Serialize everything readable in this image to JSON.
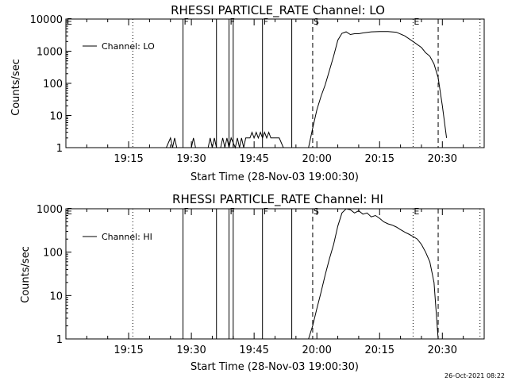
{
  "footer": {
    "timestamp": "26-Oct-2021 08:22"
  },
  "chart_data": [
    {
      "type": "line",
      "title": "RHESSI PARTICLE_RATE Channel: LO",
      "xlabel": "Start Time (28-Nov-03 19:00:30)",
      "ylabel": "Counts/sec",
      "yscale": "log",
      "xlim": [
        "19:00",
        "20:40"
      ],
      "ylim": [
        1,
        10000
      ],
      "x_ticks": [
        "19:15",
        "19:30",
        "19:45",
        "20:00",
        "20:15",
        "20:30"
      ],
      "y_ticks": [
        "1",
        "10",
        "100",
        "1000",
        "10000"
      ],
      "legend": {
        "placement": "top-left",
        "entries": [
          "Channel: LO"
        ]
      },
      "markers": [
        {
          "label": "E",
          "time": "19:00",
          "style": "none"
        },
        {
          "label": "",
          "time": "19:16",
          "style": "dotted"
        },
        {
          "label": "F",
          "time": "19:28",
          "style": "solid"
        },
        {
          "label": "",
          "time": "19:36",
          "style": "solid"
        },
        {
          "label": "F",
          "time": "19:39",
          "style": "solid"
        },
        {
          "label": "",
          "time": "19:40",
          "style": "solid"
        },
        {
          "label": "F",
          "time": "19:47",
          "style": "solid"
        },
        {
          "label": "",
          "time": "19:54",
          "style": "solid"
        },
        {
          "label": "S",
          "time": "19:59",
          "style": "dashed"
        },
        {
          "label": "E",
          "time": "20:23",
          "style": "dotted"
        },
        {
          "label": "",
          "time": "20:29",
          "style": "dashed"
        },
        {
          "label": "",
          "time": "20:39",
          "style": "dotted"
        }
      ],
      "series": [
        {
          "name": "Channel: LO",
          "points": [
            [
              "19:24",
              1
            ],
            [
              "19:25",
              2
            ],
            [
              "19:25.5",
              1
            ],
            [
              "19:26",
              2
            ],
            [
              "19:26.5",
              1
            ],
            [
              "19:30",
              1
            ],
            [
              "19:30.5",
              2
            ],
            [
              "19:31",
              1
            ],
            [
              "19:34",
              1
            ],
            [
              "19:34.5",
              2
            ],
            [
              "19:35",
              1
            ],
            [
              "19:35.5",
              2
            ],
            [
              "19:36",
              1
            ],
            [
              "19:37",
              1
            ],
            [
              "19:37.5",
              2
            ],
            [
              "19:38",
              1
            ],
            [
              "19:38.5",
              2
            ],
            [
              "19:39",
              1
            ],
            [
              "19:39.5",
              2
            ],
            [
              "19:40.5",
              1
            ],
            [
              "19:41",
              2
            ],
            [
              "19:41.5",
              1
            ],
            [
              "19:42",
              2
            ],
            [
              "19:42.5",
              1
            ],
            [
              "19:43",
              2
            ],
            [
              "19:44",
              2
            ],
            [
              "19:44.5",
              3
            ],
            [
              "19:45",
              2
            ],
            [
              "19:45.5",
              3
            ],
            [
              "19:46",
              2
            ],
            [
              "19:46.5",
              3
            ],
            [
              "19:47",
              2
            ],
            [
              "19:47.5",
              3
            ],
            [
              "19:48",
              2
            ],
            [
              "19:48.5",
              3
            ],
            [
              "19:49",
              2
            ],
            [
              "19:49.5",
              2
            ],
            [
              "19:50",
              2
            ],
            [
              "19:51",
              2
            ],
            [
              "19:52",
              1
            ],
            [
              "19:58",
              1
            ],
            [
              "19:59",
              4
            ],
            [
              "20:00",
              15
            ],
            [
              "20:01",
              40
            ],
            [
              "20:02",
              90
            ],
            [
              "20:03",
              250
            ],
            [
              "20:04",
              700
            ],
            [
              "20:05",
              2200
            ],
            [
              "20:06",
              3600
            ],
            [
              "20:07",
              4000
            ],
            [
              "20:08",
              3300
            ],
            [
              "20:09",
              3500
            ],
            [
              "20:10",
              3500
            ],
            [
              "20:11",
              3700
            ],
            [
              "20:13",
              4000
            ],
            [
              "20:15",
              4100
            ],
            [
              "20:17",
              4100
            ],
            [
              "20:19",
              3900
            ],
            [
              "20:21",
              3000
            ],
            [
              "20:23",
              2000
            ],
            [
              "20:25",
              1300
            ],
            [
              "20:26",
              900
            ],
            [
              "20:27",
              700
            ],
            [
              "20:28",
              400
            ],
            [
              "20:29",
              150
            ],
            [
              "20:30",
              20
            ],
            [
              "20:31",
              2
            ]
          ]
        }
      ]
    },
    {
      "type": "line",
      "title": "RHESSI PARTICLE_RATE Channel: HI",
      "xlabel": "Start Time (28-Nov-03 19:00:30)",
      "ylabel": "Counts/sec",
      "yscale": "log",
      "xlim": [
        "19:00",
        "20:40"
      ],
      "ylim": [
        1,
        1000
      ],
      "x_ticks": [
        "19:15",
        "19:30",
        "19:45",
        "20:00",
        "20:15",
        "20:30"
      ],
      "y_ticks": [
        "1",
        "10",
        "100",
        "1000"
      ],
      "legend": {
        "placement": "top-left",
        "entries": [
          "Channel: HI"
        ]
      },
      "markers": [
        {
          "label": "E",
          "time": "19:00",
          "style": "none"
        },
        {
          "label": "",
          "time": "19:16",
          "style": "dotted"
        },
        {
          "label": "F",
          "time": "19:28",
          "style": "solid"
        },
        {
          "label": "",
          "time": "19:36",
          "style": "solid"
        },
        {
          "label": "F",
          "time": "19:39",
          "style": "solid"
        },
        {
          "label": "",
          "time": "19:40",
          "style": "solid"
        },
        {
          "label": "F",
          "time": "19:47",
          "style": "solid"
        },
        {
          "label": "",
          "time": "19:54",
          "style": "solid"
        },
        {
          "label": "S",
          "time": "19:59",
          "style": "dashed"
        },
        {
          "label": "E",
          "time": "20:23",
          "style": "dotted"
        },
        {
          "label": "",
          "time": "20:29",
          "style": "dashed"
        },
        {
          "label": "",
          "time": "20:39",
          "style": "dotted"
        }
      ],
      "series": [
        {
          "name": "Channel: HI",
          "points": [
            [
              "19:58",
              1
            ],
            [
              "19:59",
              2
            ],
            [
              "20:00",
              5
            ],
            [
              "20:01",
              12
            ],
            [
              "20:02",
              30
            ],
            [
              "20:03",
              70
            ],
            [
              "20:04",
              150
            ],
            [
              "20:05",
              400
            ],
            [
              "20:06",
              800
            ],
            [
              "20:07",
              1000
            ],
            [
              "20:08",
              950
            ],
            [
              "20:09",
              800
            ],
            [
              "20:10",
              900
            ],
            [
              "20:11",
              750
            ],
            [
              "20:12",
              800
            ],
            [
              "20:13",
              650
            ],
            [
              "20:14",
              700
            ],
            [
              "20:15",
              600
            ],
            [
              "20:16",
              500
            ],
            [
              "20:17",
              450
            ],
            [
              "20:18",
              420
            ],
            [
              "20:19",
              380
            ],
            [
              "20:20",
              330
            ],
            [
              "20:21",
              290
            ],
            [
              "20:22",
              260
            ],
            [
              "20:23",
              230
            ],
            [
              "20:24",
              200
            ],
            [
              "20:25",
              150
            ],
            [
              "20:26",
              100
            ],
            [
              "20:27",
              60
            ],
            [
              "20:28",
              20
            ],
            [
              "20:29",
              1
            ]
          ]
        }
      ]
    }
  ]
}
